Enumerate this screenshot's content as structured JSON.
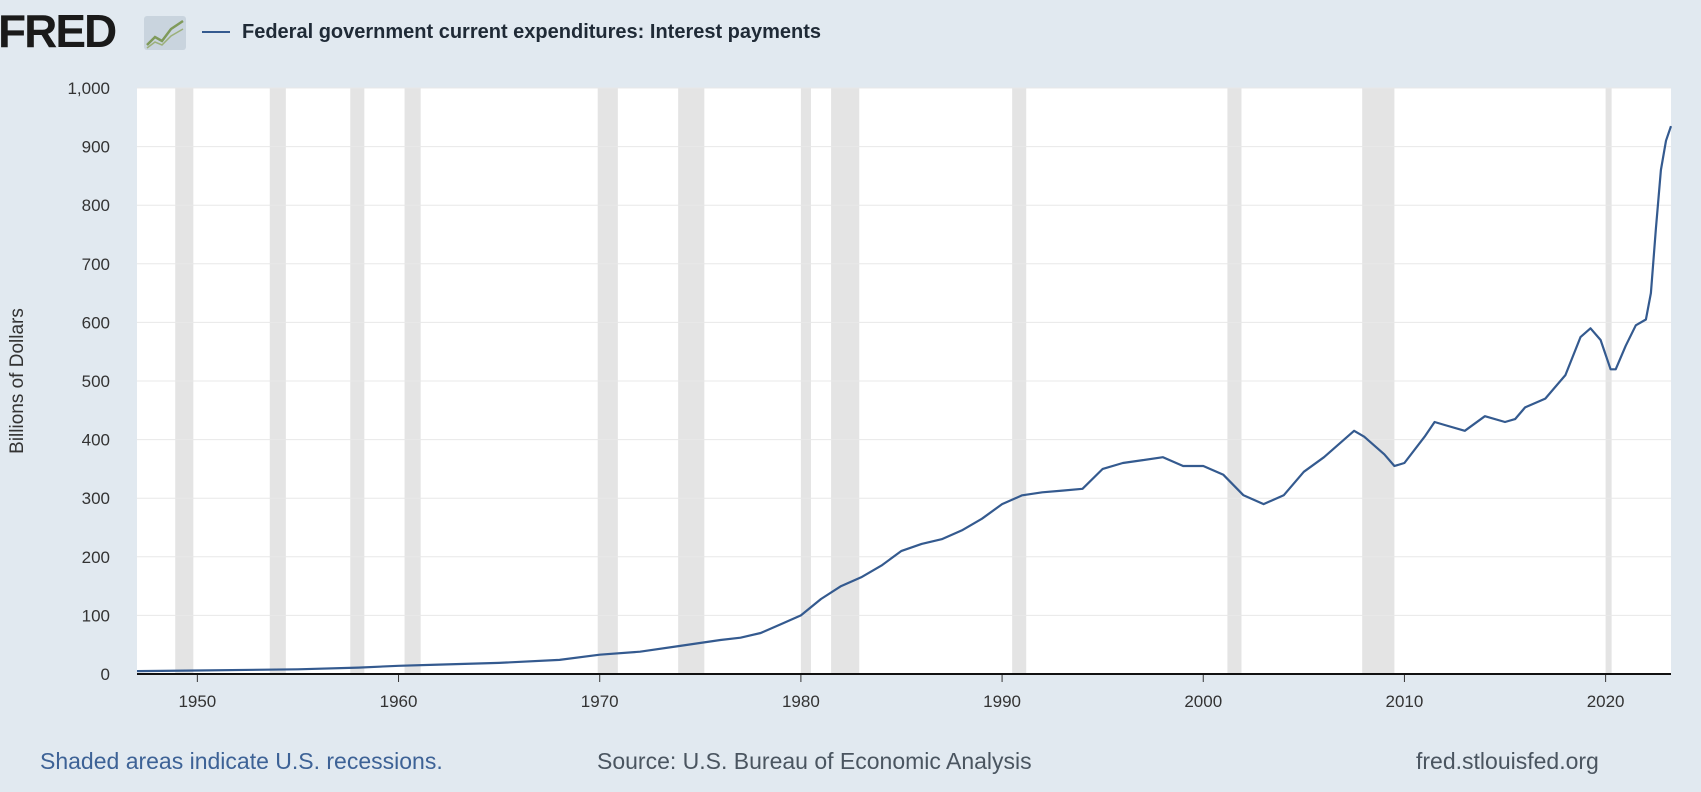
{
  "header": {
    "logo_text": "FRED",
    "logo_icon": "line-graph-icon",
    "legend_label": "Federal government current expenditures: Interest payments"
  },
  "colors": {
    "background": "#e1e9f0",
    "plot_background": "#ffffff",
    "series_line": "#345a8f",
    "recession_shade": "#e4e4e4",
    "gridline": "#e8e8e8",
    "footer_link": "#3d6296"
  },
  "footer": {
    "recession_note": "Shaded areas indicate U.S. recessions.",
    "source": "Source: U.S. Bureau of Economic Analysis",
    "site": "fred.stlouisfed.org"
  },
  "chart_data": {
    "type": "line",
    "title": "",
    "xlabel": "",
    "ylabel": "Billions of Dollars",
    "xlim": [
      1947,
      2023.25
    ],
    "ylim": [
      0,
      1000
    ],
    "x_ticks": [
      1950,
      1960,
      1970,
      1980,
      1990,
      2000,
      2010,
      2020
    ],
    "y_ticks": [
      0,
      100,
      200,
      300,
      400,
      500,
      600,
      700,
      800,
      900,
      1000
    ],
    "y_tick_labels": [
      "0",
      "100",
      "200",
      "300",
      "400",
      "500",
      "600",
      "700",
      "800",
      "900",
      "1,000"
    ],
    "grid": "horizontal",
    "recessions": [
      [
        1948.9,
        1949.8
      ],
      [
        1953.6,
        1954.4
      ],
      [
        1957.6,
        1958.3
      ],
      [
        1960.3,
        1961.1
      ],
      [
        1969.9,
        1970.9
      ],
      [
        1973.9,
        1975.2
      ],
      [
        1980.0,
        1980.5
      ],
      [
        1981.5,
        1982.9
      ],
      [
        1990.5,
        1991.2
      ],
      [
        2001.2,
        2001.9
      ],
      [
        2007.9,
        2009.5
      ],
      [
        2020.0,
        2020.3
      ]
    ],
    "series": [
      {
        "name": "Federal government current expenditures: Interest payments",
        "x": [
          1947,
          1950,
          1955,
          1958,
          1960,
          1962,
          1965,
          1968,
          1970,
          1972,
          1974,
          1976,
          1977,
          1978,
          1979,
          1980,
          1981,
          1982,
          1983,
          1984,
          1985,
          1986,
          1987,
          1988,
          1989,
          1990,
          1991,
          1992,
          1993,
          1994,
          1995,
          1996,
          1997,
          1998,
          1999,
          2000,
          2001,
          2002,
          2003,
          2004,
          2005,
          2006,
          2007,
          2007.5,
          2008,
          2009,
          2009.5,
          2010,
          2011,
          2011.5,
          2012,
          2013,
          2014,
          2015,
          2015.5,
          2016,
          2017,
          2018,
          2018.75,
          2019.25,
          2019.75,
          2020.25,
          2020.5,
          2021,
          2021.5,
          2022,
          2022.25,
          2022.5,
          2022.75,
          2023,
          2023.25
        ],
        "values": [
          5,
          6,
          8,
          11,
          14,
          16,
          19,
          24,
          33,
          38,
          48,
          58,
          62,
          70,
          85,
          100,
          128,
          150,
          165,
          185,
          210,
          222,
          230,
          245,
          265,
          290,
          305,
          310,
          313,
          316,
          350,
          360,
          365,
          370,
          355,
          355,
          340,
          305,
          290,
          305,
          345,
          370,
          400,
          415,
          405,
          375,
          355,
          360,
          405,
          430,
          425,
          415,
          440,
          430,
          435,
          455,
          470,
          510,
          575,
          590,
          570,
          520,
          520,
          560,
          595,
          605,
          650,
          760,
          860,
          910,
          935
        ]
      }
    ]
  }
}
